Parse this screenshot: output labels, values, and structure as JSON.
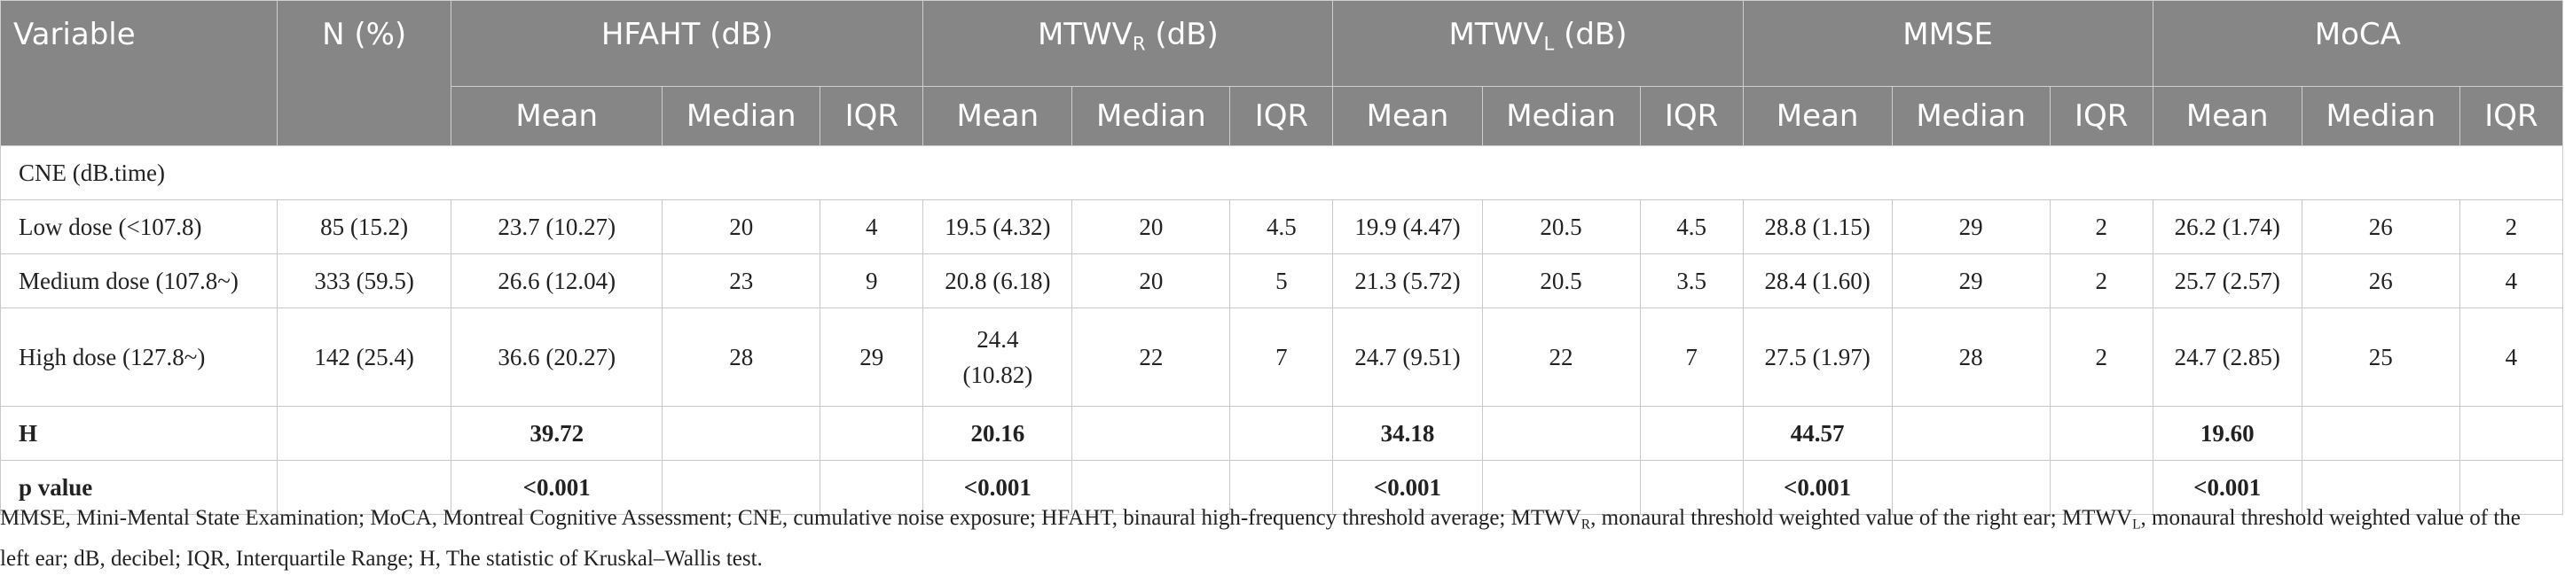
{
  "header": {
    "variable": "Variable",
    "n_pct": "N (%)",
    "groups": [
      {
        "pre": "HFAHT (dB)",
        "sub": "",
        "post": ""
      },
      {
        "pre": "MTWV",
        "sub": "R",
        "post": " (dB)"
      },
      {
        "pre": "MTWV",
        "sub": "L",
        "post": " (dB)"
      },
      {
        "pre": "MMSE",
        "sub": "",
        "post": ""
      },
      {
        "pre": "MoCA",
        "sub": "",
        "post": ""
      }
    ],
    "stats": [
      "Mean",
      "Median",
      "IQR"
    ]
  },
  "section_label": "CNE (dB.time)",
  "rows": [
    {
      "label": "Low dose (<107.8)",
      "n": "85 (15.2)",
      "cells": [
        "23.7 (10.27)",
        "20",
        "4",
        "19.5 (4.32)",
        "20",
        "4.5",
        "19.9 (4.47)",
        "20.5",
        "4.5",
        "28.8 (1.15)",
        "29",
        "2",
        "26.2 (1.74)",
        "26",
        "2"
      ]
    },
    {
      "label": "Medium dose (107.8~)",
      "n": "333 (59.5)",
      "cells": [
        "26.6 (12.04)",
        "23",
        "9",
        "20.8 (6.18)",
        "20",
        "5",
        "21.3 (5.72)",
        "20.5",
        "3.5",
        "28.4 (1.60)",
        "29",
        "2",
        "25.7 (2.57)",
        "26",
        "4"
      ]
    },
    {
      "label": "High dose (127.8~)",
      "n": "142 (25.4)",
      "cells": [
        "36.6 (20.27)",
        "28",
        "29",
        "24.4 (10.82)",
        "22",
        "7",
        "24.7 (9.51)",
        "22",
        "7",
        "27.5 (1.97)",
        "28",
        "2",
        "24.7 (2.85)",
        "25",
        "4"
      ]
    }
  ],
  "h_row": {
    "label": "H",
    "values": [
      "39.72",
      "20.16",
      "34.18",
      "44.57",
      "19.60"
    ]
  },
  "p_row": {
    "label": "p value",
    "values": [
      "<0.001",
      "<0.001",
      "<0.001",
      "<0.001",
      "<0.001"
    ]
  },
  "footnote": {
    "part1": "MMSE, Mini-Mental State Examination; MoCA, Montreal Cognitive Assessment; CNE, cumulative noise exposure; HFAHT, binaural high-frequency threshold average; MTWV",
    "sub_r": "R",
    "part2": ", monaural threshold weighted value of the right ear; MTWV",
    "sub_l": "L",
    "part3": ", monaural threshold weighted value of the left ear; dB, decibel; IQR, Interquartile Range; H, The statistic of Kruskal–Wallis test."
  }
}
